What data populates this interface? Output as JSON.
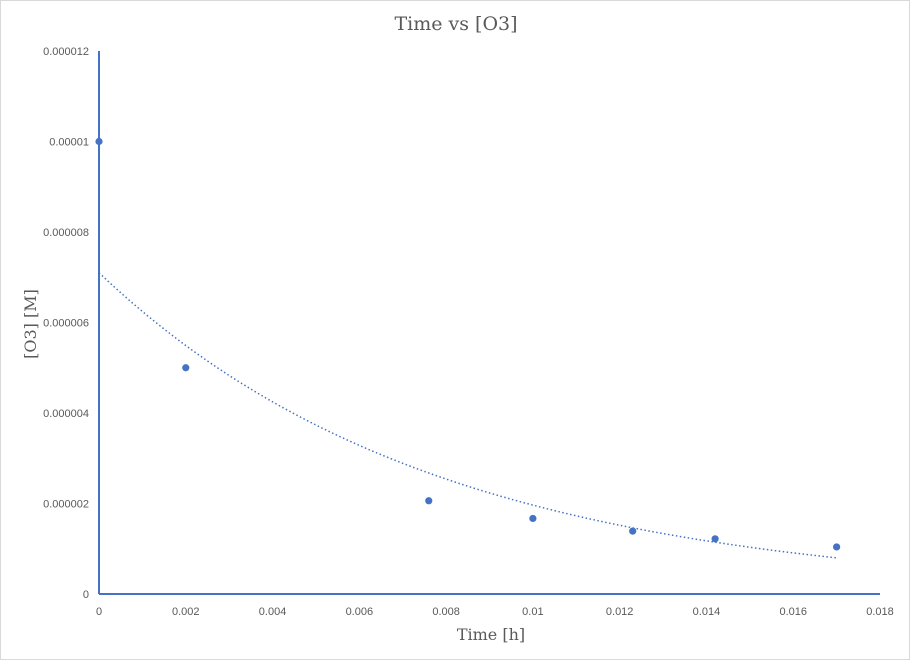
{
  "chart_data": {
    "type": "scatter",
    "title": "Time vs [O3]",
    "xlabel": "Time [h]",
    "ylabel": "[O3] [M]",
    "xlim": [
      0,
      0.018
    ],
    "ylim": [
      0,
      1.2e-05
    ],
    "x_ticks": [
      "0",
      "0.002",
      "0.004",
      "0.006",
      "0.008",
      "0.01",
      "0.012",
      "0.014",
      "0.016",
      "0.018"
    ],
    "x_tick_values": [
      0,
      0.002,
      0.004,
      0.006,
      0.008,
      0.01,
      0.012,
      0.014,
      0.016,
      0.018
    ],
    "y_ticks": [
      "0",
      "0.000002",
      "0.000004",
      "0.000006",
      "0.000008",
      "0.00001",
      "0.000012"
    ],
    "y_tick_values": [
      0,
      2e-06,
      4e-06,
      6e-06,
      8e-06,
      1e-05,
      1.2e-05
    ],
    "grid": false,
    "legend": "none",
    "series": [
      {
        "x": [
          0,
          0.002,
          0.0076,
          0.01,
          0.0123,
          0.0142,
          0.017
        ],
        "y": [
          1e-05,
          5e-06,
          2.06e-06,
          1.67e-06,
          1.39e-06,
          1.22e-06,
          1.04e-06
        ],
        "color": "#4472C4",
        "marker": "circle"
      }
    ],
    "trendline": {
      "type": "exponential",
      "a": 7.1e-06,
      "b": -128.5,
      "x_range": [
        0,
        0.017
      ],
      "color": "#4472C4",
      "style": "dotted"
    }
  }
}
